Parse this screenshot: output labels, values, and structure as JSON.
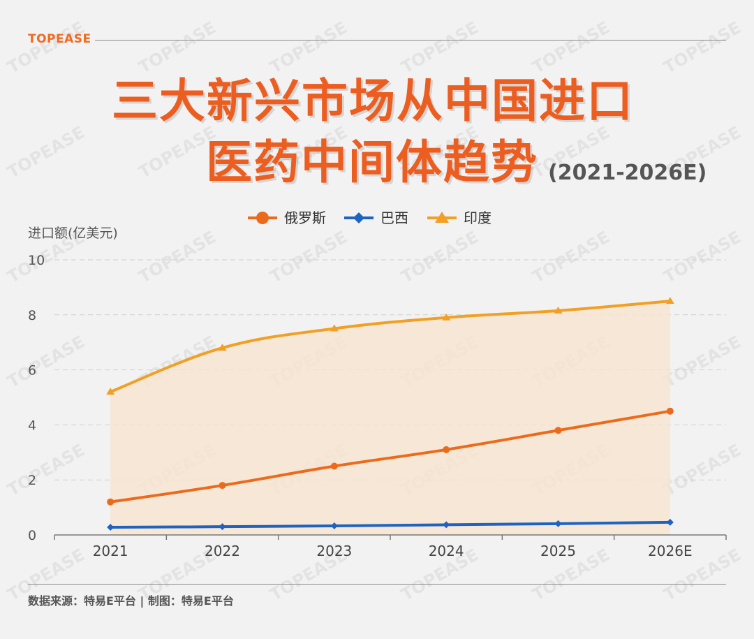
{
  "header": {
    "brand": "TOPEASE",
    "title_line1": "三大新兴市场从中国进口",
    "title_line2": "医药中间体趋势",
    "title_suffix": "(2021-2026E)"
  },
  "footer": {
    "source": "数据来源：特易E平台 | 制图：特易E平台"
  },
  "watermark": "TOPEASE",
  "chart_data": {
    "type": "line",
    "ylabel": "进口额(亿美元)",
    "ylim": [
      0,
      10
    ],
    "yticks": [
      0,
      2,
      4,
      6,
      8,
      10
    ],
    "categories": [
      "2021",
      "2022",
      "2023",
      "2024",
      "2025",
      "2026E"
    ],
    "grid": true,
    "legend_position": "top",
    "series": [
      {
        "name": "俄罗斯",
        "marker": "circle",
        "color": "#ec6a1b",
        "values": [
          1.2,
          1.8,
          2.5,
          3.1,
          3.8,
          4.5
        ]
      },
      {
        "name": "巴西",
        "marker": "diamond",
        "color": "#1f63c0",
        "values": [
          0.28,
          0.3,
          0.33,
          0.37,
          0.41,
          0.46
        ]
      },
      {
        "name": "印度",
        "marker": "triangle",
        "color": "#f0a024",
        "values": [
          5.2,
          6.8,
          7.5,
          7.9,
          8.15,
          8.5
        ]
      }
    ],
    "area_fill": "#f7e4cf"
  }
}
